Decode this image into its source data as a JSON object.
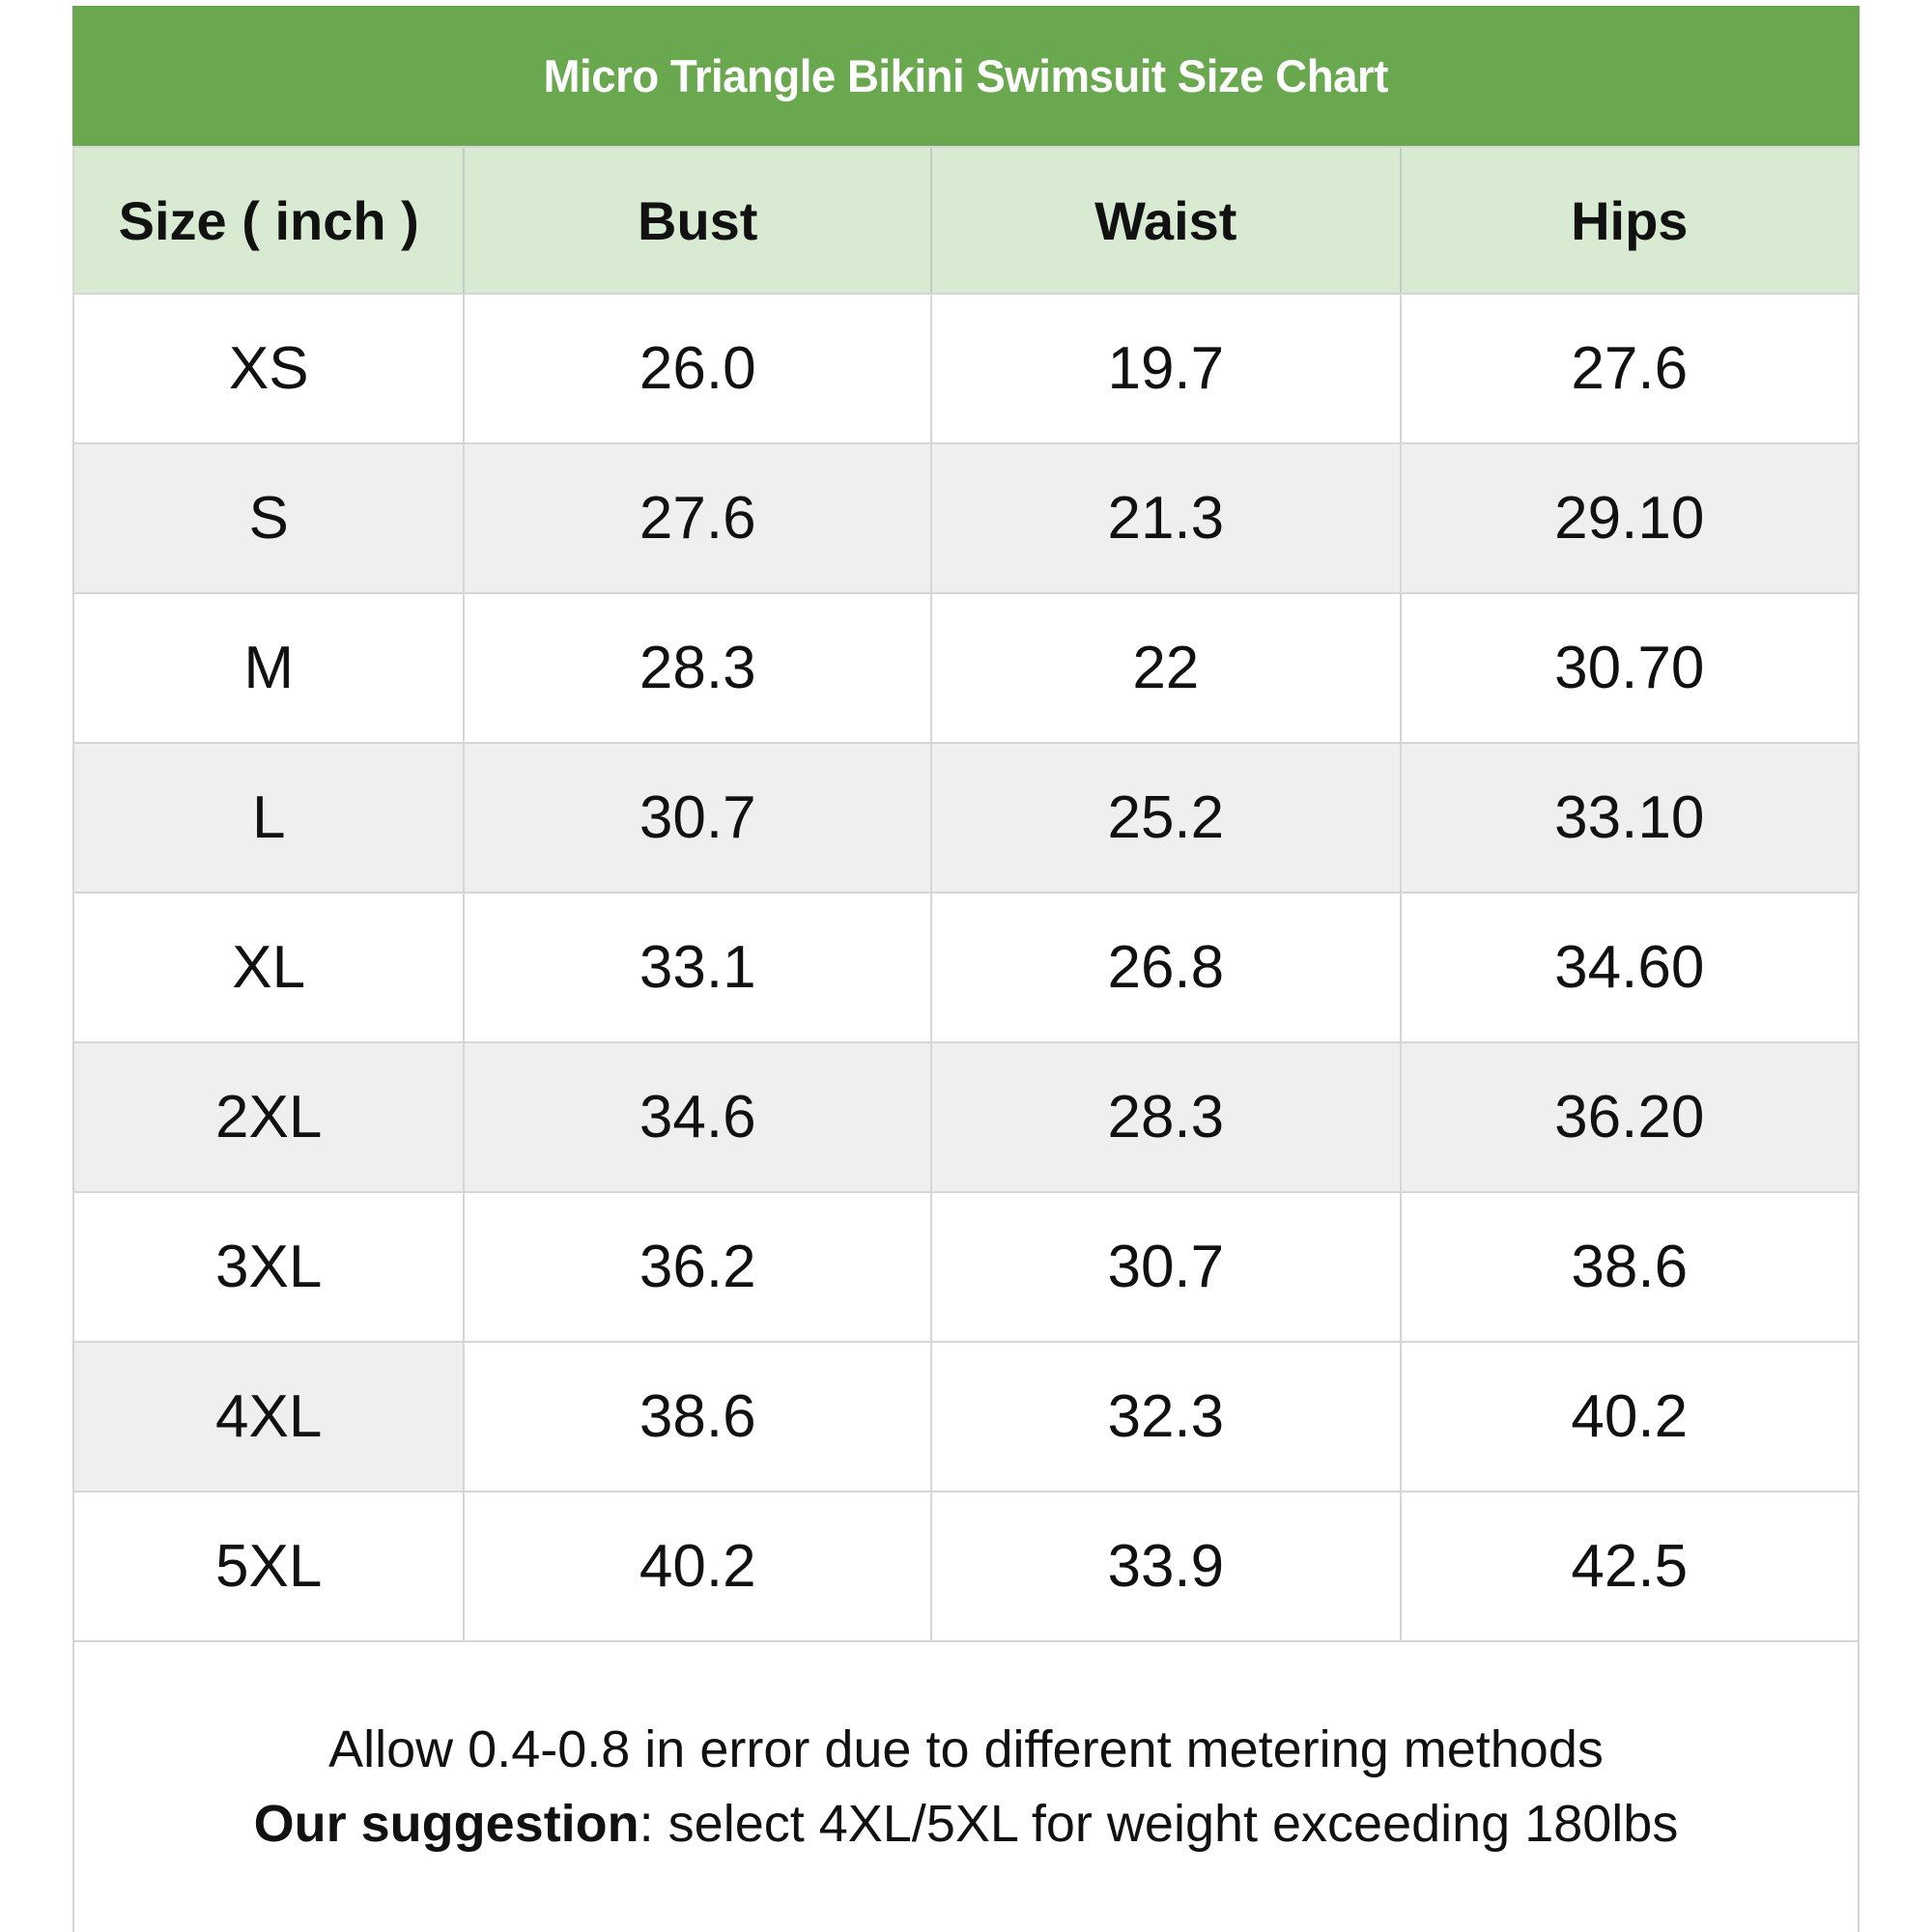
{
  "title": "Micro Triangle Bikini Swimsuit Size Chart",
  "chart_data": {
    "type": "table",
    "title": "Micro Triangle Bikini Swimsuit Size Chart",
    "columns": [
      "Size ( inch )",
      "Bust",
      "Waist",
      "Hips"
    ],
    "rows": [
      {
        "cells": [
          "XS",
          "26.0",
          "19.7",
          "27.6"
        ],
        "shade": "none"
      },
      {
        "cells": [
          "S",
          "27.6",
          "21.3",
          "29.10"
        ],
        "shade": "all"
      },
      {
        "cells": [
          "M",
          "28.3",
          "22",
          "30.70"
        ],
        "shade": "none"
      },
      {
        "cells": [
          "L",
          "30.7",
          "25.2",
          "33.10"
        ],
        "shade": "all"
      },
      {
        "cells": [
          "XL",
          "33.1",
          "26.8",
          "34.60"
        ],
        "shade": "none"
      },
      {
        "cells": [
          "2XL",
          "34.6",
          "28.3",
          "36.20"
        ],
        "shade": "all"
      },
      {
        "cells": [
          "3XL",
          "36.2",
          "30.7",
          "38.6"
        ],
        "shade": "none"
      },
      {
        "cells": [
          "4XL",
          "38.6",
          "32.3",
          "40.2"
        ],
        "shade": "first"
      },
      {
        "cells": [
          "5XL",
          "40.2",
          "33.9",
          "42.5"
        ],
        "shade": "none"
      }
    ],
    "footnotes": [
      "Allow 0.4-0.8 in error due to different metering methods",
      "Our suggestion: select 4XL/5XL for weight exceeding 180lbs"
    ]
  },
  "footer": {
    "line1": "Allow 0.4-0.8 in error due to different metering methods",
    "line2_bold": "Our suggestion",
    "line2_rest": ": select 4XL/5XL for weight exceeding 180lbs"
  },
  "colors": {
    "title_bg": "#6aa84f",
    "title_text": "#ffffff",
    "header_bg": "#d9ead3",
    "row_bg": "#ffffff",
    "row_alt_bg": "#efefef",
    "border": "#d6d6d6",
    "border_on_green": "#c3ccc0",
    "text": "#111111"
  }
}
